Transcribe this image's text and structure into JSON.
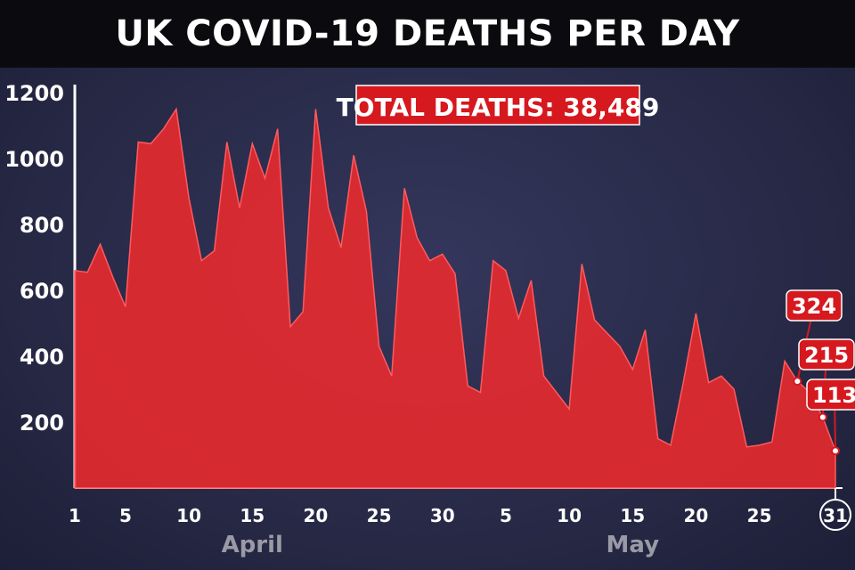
{
  "chart_data": {
    "type": "area",
    "title": "UK COVID-19 DEATHS PER DAY",
    "annotation": "TOTAL DEATHS: 38,489",
    "y_ticks": [
      "200",
      "400",
      "600",
      "800",
      "1000",
      "1200"
    ],
    "ylim": [
      0,
      1200
    ],
    "x_ticks": [
      "1",
      "5",
      "10",
      "15",
      "20",
      "25",
      "30",
      "5",
      "10",
      "15",
      "20",
      "25",
      "31"
    ],
    "months": [
      "April",
      "May"
    ],
    "x_start": "2020-04-01",
    "x_end": "2020-05-31",
    "values": [
      660,
      655,
      740,
      640,
      550,
      1050,
      1045,
      1090,
      1150,
      880,
      690,
      720,
      1050,
      850,
      1045,
      940,
      1090,
      490,
      535,
      1150,
      850,
      730,
      1010,
      840,
      430,
      340,
      910,
      760,
      690,
      710,
      650,
      310,
      290,
      690,
      660,
      515,
      630,
      340,
      290,
      240,
      680,
      510,
      470,
      430,
      360,
      480,
      150,
      130,
      320,
      530,
      320,
      340,
      300,
      125,
      130,
      140,
      385,
      324,
      290,
      215,
      113
    ],
    "color": "#ee2a2e",
    "highlighted_values": [
      "324",
      "215",
      "113"
    ],
    "grid": false,
    "legend": "none"
  }
}
